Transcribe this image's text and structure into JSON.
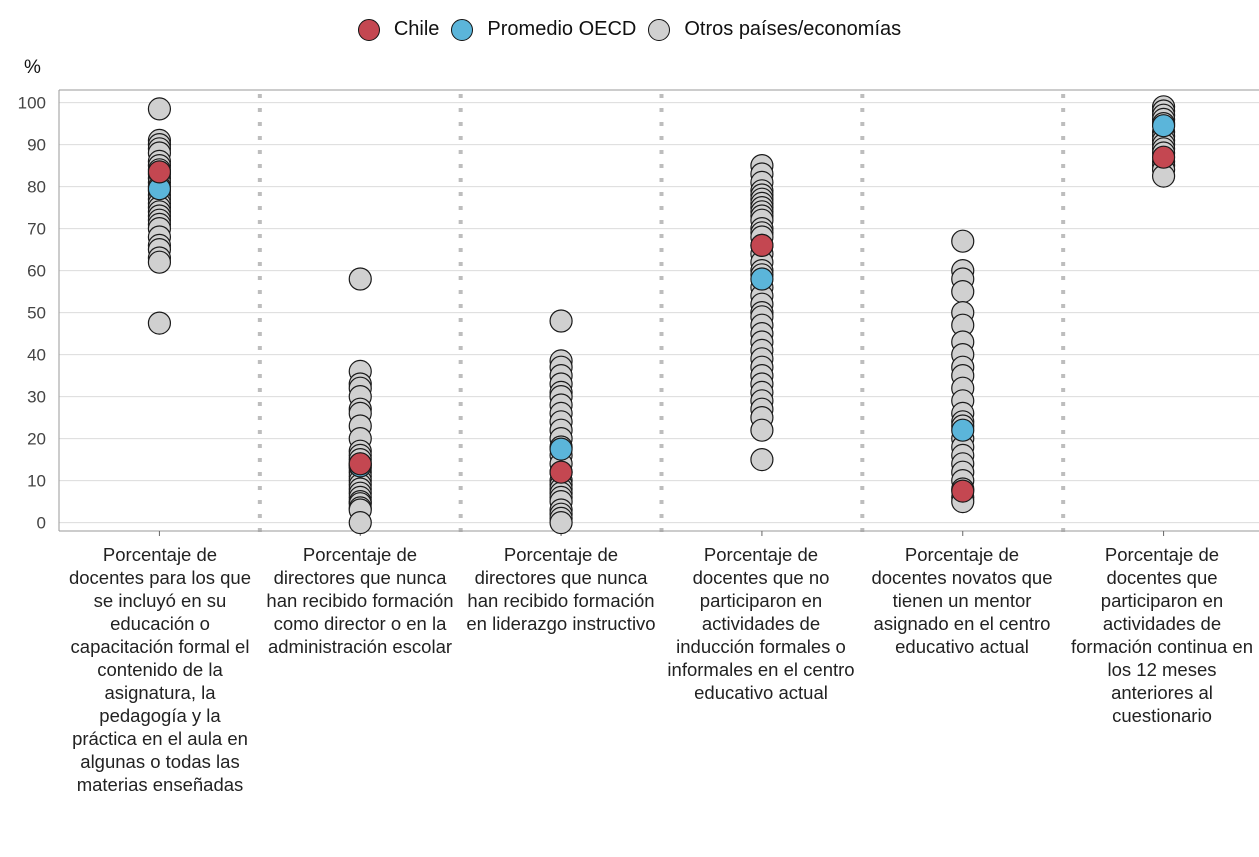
{
  "legend": {
    "items": [
      {
        "label": "Chile",
        "color": "#C44751"
      },
      {
        "label": "Promedio OECD",
        "color": "#5BB5DA"
      },
      {
        "label": "Otros países/economías",
        "color": "#D0D0D0"
      }
    ]
  },
  "unit_label": "%",
  "chart_data": {
    "type": "scatter",
    "ylim": [
      -2,
      103
    ],
    "yticks": [
      0,
      10,
      20,
      30,
      40,
      50,
      60,
      70,
      80,
      90,
      100
    ],
    "grid": true,
    "legend_position": "top",
    "categories": [
      "Porcentaje de docentes para los que se incluyó en su educación o capacitación formal el contenido de la asignatura, la pedagogía y la práctica en el aula en algunas o todas las materias enseñadas",
      "Porcentaje de directores que nunca han recibido formación como director o en la administración escolar",
      "Porcentaje de directores que nunca han recibido formación en liderazgo instructivo",
      "Porcentaje de docentes que no participaron en actividades de inducción formales o informales en el centro educativo actual",
      "Porcentaje de docentes novatos que tienen un mentor asignado en el centro educativo actual",
      "Porcentaje de docentes que participaron en actividades de formación continua en los 12 meses anteriores al cuestionario"
    ],
    "series": [
      {
        "name": "Otros países/economías",
        "color": "#D0D0D0",
        "values": [
          [
            98.5,
            91,
            90,
            89,
            88,
            86,
            85,
            84,
            83,
            82,
            81,
            80,
            79,
            78,
            77,
            76,
            75,
            74,
            73,
            72,
            71,
            70,
            68,
            66,
            65,
            63,
            62,
            47.5
          ],
          [
            58,
            36,
            33,
            32,
            30,
            27,
            26,
            23,
            20,
            17,
            16,
            15,
            14,
            13,
            12,
            11,
            10,
            9,
            8,
            7,
            6,
            5,
            4.5,
            3.5,
            3,
            0
          ],
          [
            48,
            38.5,
            37,
            35,
            33,
            31,
            30,
            28,
            26,
            24,
            22,
            20,
            18,
            16,
            14,
            12,
            10,
            9,
            8,
            7,
            6,
            5,
            3,
            2,
            1,
            0
          ],
          [
            85,
            83,
            81,
            79,
            78,
            77,
            76,
            75,
            74,
            73,
            72,
            70,
            69,
            68,
            66,
            64,
            62,
            60,
            59,
            56,
            54,
            52,
            50,
            49,
            47,
            45,
            43,
            41,
            39,
            37,
            35,
            33,
            31,
            29,
            27,
            25,
            22,
            15
          ],
          [
            67,
            60,
            58,
            55,
            50,
            47,
            43,
            40,
            37,
            35,
            32,
            29,
            26,
            24,
            23,
            20,
            18,
            16,
            14,
            12,
            10,
            8,
            6,
            5
          ],
          [
            99,
            98,
            97,
            96,
            95,
            93,
            92,
            91,
            90,
            89,
            88,
            86,
            85,
            84,
            82.5
          ]
        ]
      },
      {
        "name": "Promedio OECD",
        "color": "#5BB5DA",
        "values": [
          79.5,
          13.5,
          17.5,
          58,
          22,
          94.5
        ]
      },
      {
        "name": "Chile",
        "color": "#C44751",
        "values": [
          83.5,
          14,
          12,
          66,
          7.5,
          87
        ]
      }
    ]
  }
}
